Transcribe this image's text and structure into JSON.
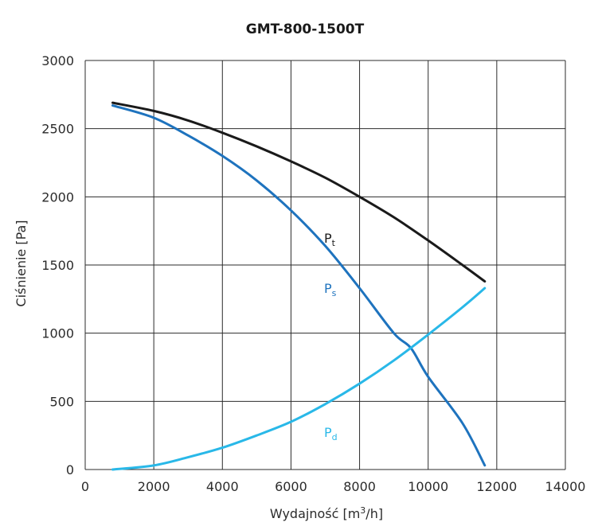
{
  "chart_data": {
    "type": "line",
    "title": "GMT-800-1500T",
    "xlabel": "Wydajność [m³/h]",
    "xlabel_parts": {
      "main": "Wydajność [m",
      "sup": "3",
      "tail": "/h]"
    },
    "ylabel": "Ciśnienie [Pa]",
    "xlim": [
      0,
      14000
    ],
    "ylim": [
      0,
      3000
    ],
    "xticks": [
      "0",
      "2000",
      "4000",
      "6000",
      "8000",
      "10000",
      "12000",
      "14000"
    ],
    "yticks": [
      "0",
      "500",
      "1000",
      "1500",
      "2000",
      "2500",
      "3000"
    ],
    "grid": true,
    "legend": "none",
    "series": [
      {
        "name": "Pt",
        "label_main": "P",
        "label_sub": "t",
        "color": "#1a1a1a",
        "x": [
          800,
          2000,
          3000,
          4000,
          5000,
          6000,
          7000,
          8000,
          9000,
          10000,
          11000,
          11650
        ],
        "y": [
          2690,
          2630,
          2560,
          2470,
          2370,
          2260,
          2140,
          2000,
          1850,
          1680,
          1500,
          1380
        ]
      },
      {
        "name": "Ps",
        "label_main": "P",
        "label_sub": "s",
        "color": "#1e73be",
        "x": [
          800,
          2000,
          3000,
          4000,
          5000,
          6000,
          7000,
          8000,
          9000,
          9500,
          10000,
          11000,
          11650
        ],
        "y": [
          2670,
          2580,
          2450,
          2300,
          2120,
          1900,
          1640,
          1330,
          1000,
          890,
          680,
          340,
          30
        ]
      },
      {
        "name": "Pd",
        "label_main": "P",
        "label_sub": "d",
        "color": "#29b8e8",
        "x": [
          800,
          2000,
          3000,
          4000,
          5000,
          6000,
          7000,
          8000,
          9000,
          10000,
          11000,
          11650
        ],
        "y": [
          0,
          30,
          90,
          160,
          250,
          350,
          480,
          630,
          800,
          990,
          1190,
          1330
        ]
      }
    ]
  }
}
